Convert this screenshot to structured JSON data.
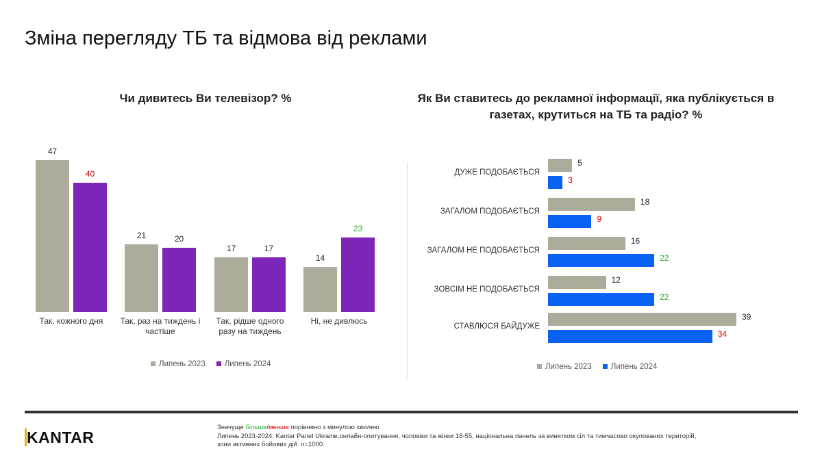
{
  "page_title": "Зміна перегляду ТБ та відмова від реклами",
  "colors": {
    "july2023": "#acab9c",
    "july2024_left": "#7b26b8",
    "july2024_right": "#0a62f5",
    "more": "#2ab02a",
    "less": "#d40000",
    "neutral": "#222222"
  },
  "chart_data": [
    {
      "type": "bar",
      "title": "Чи дивитесь Ви телевізор? %",
      "categories": [
        "Так, кожного дня",
        "Так, раз на тиждень і частіше",
        "Так, рідше одного разу на тиждень",
        "Ні, не дивлюсь"
      ],
      "series": [
        {
          "name": "Липень 2023",
          "values": [
            47,
            21,
            17,
            14
          ],
          "label_colors": [
            "neutral",
            "neutral",
            "neutral",
            "neutral"
          ]
        },
        {
          "name": "Липень 2024",
          "values": [
            40,
            20,
            17,
            23
          ],
          "label_colors": [
            "less",
            "neutral",
            "neutral",
            "more"
          ]
        }
      ],
      "ylim": [
        0,
        50
      ],
      "grid": false,
      "legend": "bottom"
    },
    {
      "type": "bar",
      "orientation": "horizontal",
      "title": "Як Ви ставитесь до рекламної інформації, яка публікується в газетах, крутиться на ТБ та радіо? %",
      "categories": [
        "ДУЖЕ ПОДОБАЄТЬСЯ",
        "ЗАГАЛОМ ПОДОБАЄТЬСЯ",
        "ЗАГАЛОМ НЕ ПОДОБАЄТЬСЯ",
        "ЗОВСІМ НЕ ПОДОБАЄТЬСЯ",
        "СТАВЛЮСЯ БАЙДУЖЕ"
      ],
      "series": [
        {
          "name": "Липень 2023",
          "values": [
            5,
            18,
            16,
            12,
            39
          ],
          "label_colors": [
            "neutral",
            "neutral",
            "neutral",
            "neutral",
            "neutral"
          ]
        },
        {
          "name": "Липень 2024",
          "values": [
            3,
            9,
            22,
            22,
            34
          ],
          "label_colors": [
            "less",
            "less",
            "more",
            "more",
            "less"
          ]
        }
      ],
      "xlim": [
        0,
        40
      ],
      "grid": false,
      "legend": "bottom"
    }
  ],
  "footer": {
    "note_prefix": "Значуще ",
    "note_more": "більше",
    "note_slash": "/",
    "note_less": "менше",
    "note_suffix": " порівняно з минулою хвилею",
    "source": "Липень 2023-2024. Kantar Panel Ukraine,онлайн-опитування, чоловіки та жінки 18-55, національна панель за винятком сіл та тимчасово окупованих територій, зони активних бойових дій. n=1000."
  },
  "logo": {
    "text_k": "K",
    "text_rest": "ANTAR"
  }
}
